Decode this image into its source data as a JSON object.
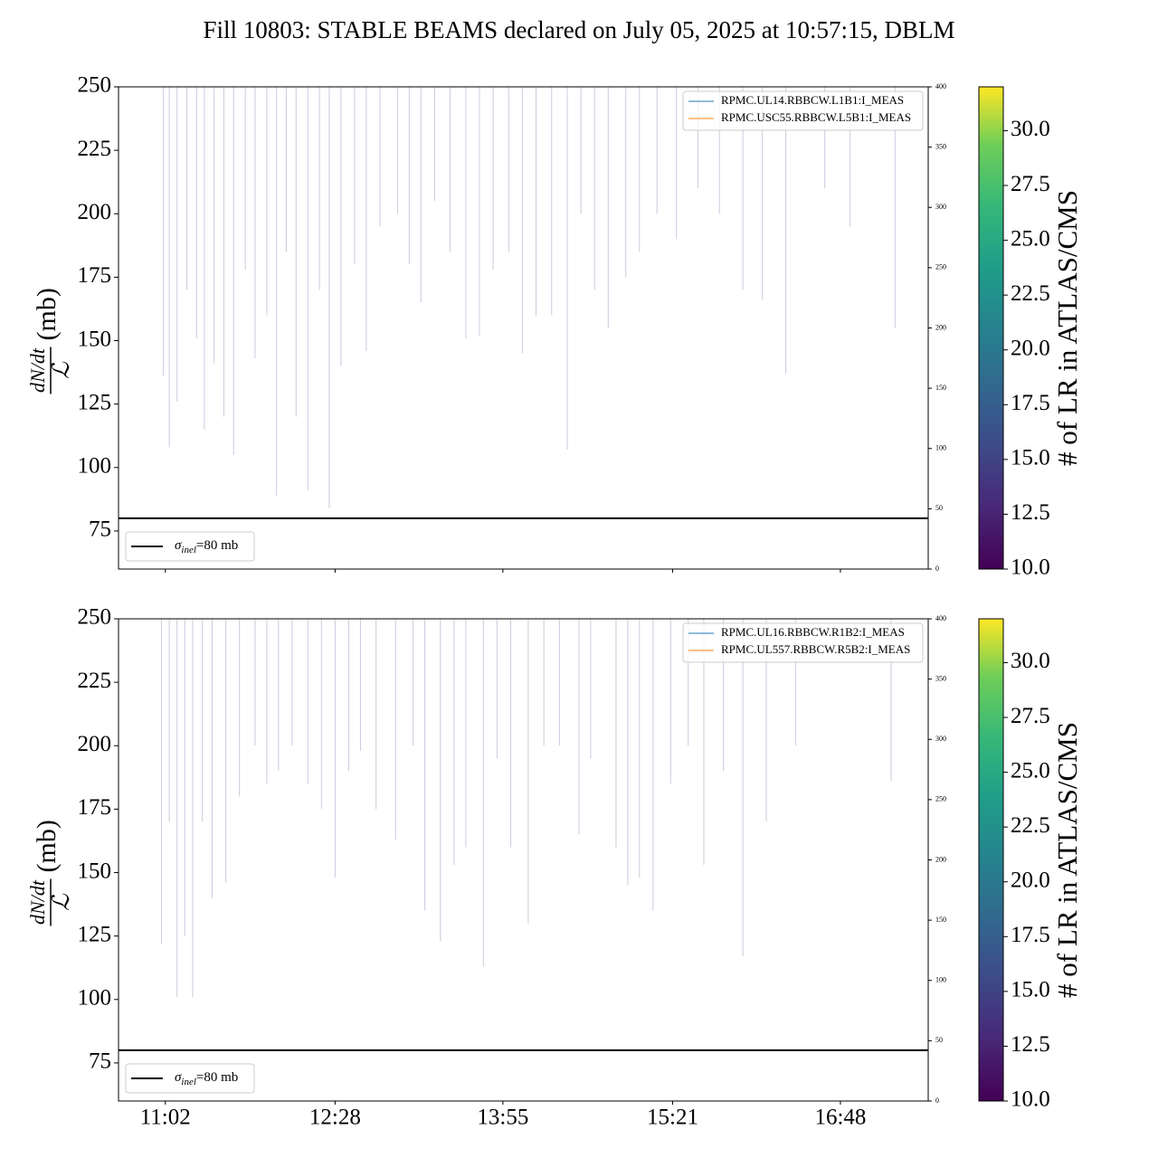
{
  "title": "Fill 10803: STABLE BEAMS declared on July 05, 2025 at 10:57:15, DBLM",
  "chart_data": [
    {
      "type": "spike",
      "ylabel": {
        "numerator": "dN/dt",
        "denominator": "ℒ",
        "unit": "(mb)"
      },
      "xlim": [
        638,
        1053
      ],
      "xticks": [
        662,
        749,
        835,
        922,
        1008
      ],
      "ylim": [
        60,
        250
      ],
      "yticks": [
        75,
        100,
        125,
        150,
        175,
        200,
        225,
        250
      ],
      "y2lim": [
        0,
        400
      ],
      "y2ticks": [
        0,
        50,
        100,
        150,
        200,
        250,
        300,
        350,
        400
      ],
      "color": "#7b5fa0",
      "x": [
        661,
        664,
        668,
        673,
        678,
        682,
        687,
        692,
        697,
        703,
        708,
        714,
        719,
        724,
        729,
        735,
        741,
        746,
        752,
        759,
        765,
        772,
        781,
        787,
        793,
        800,
        808,
        816,
        823,
        830,
        838,
        845,
        852,
        860,
        868,
        875,
        882,
        889,
        898,
        905,
        914,
        924,
        935,
        946,
        958,
        968,
        980,
        1000,
        1013,
        1036
      ],
      "values": [
        136,
        108,
        126,
        170,
        151,
        115,
        141,
        120,
        105,
        178,
        143,
        160,
        89,
        185,
        120,
        91,
        170,
        84,
        140,
        180,
        146,
        195,
        200,
        180,
        165,
        205,
        185,
        151,
        152,
        178,
        185,
        145,
        160,
        160,
        107,
        200,
        170,
        155,
        175,
        185,
        200,
        190,
        210,
        200,
        170,
        166,
        137,
        210,
        195,
        155
      ],
      "series": [
        {
          "name": "RPMC.UL14.RBBCW.L1B1:I_MEAS",
          "color": "#1f77b4",
          "axis": "y2",
          "x": [
            648,
            1040
          ],
          "values": [
            0,
            0
          ]
        },
        {
          "name": "RPMC.USC55.RBBCW.L5B1:I_MEAS",
          "color": "#ff7f0e",
          "axis": "y2",
          "x": [
            648,
            1040
          ],
          "values": [
            0,
            0
          ]
        }
      ],
      "hline": {
        "value": 80,
        "color": "#000000",
        "symbol": "σ",
        "subscript": "inel",
        "text": "=80 mb"
      },
      "colorbar": {
        "label": "# of LR in ATLAS/CMS",
        "lim": [
          10,
          32
        ],
        "ticks": [
          {
            "value": 10,
            "label": "10.0"
          },
          {
            "value": 12.5,
            "label": "12.5"
          },
          {
            "value": 15,
            "label": "15.0"
          },
          {
            "value": 17.5,
            "label": "17.5"
          },
          {
            "value": 20,
            "label": "20.0"
          },
          {
            "value": 22.5,
            "label": "22.5"
          },
          {
            "value": 25,
            "label": "25.0"
          },
          {
            "value": 27.5,
            "label": "27.5"
          },
          {
            "value": 30,
            "label": "30.0"
          }
        ]
      }
    },
    {
      "type": "spike",
      "ylabel": {
        "numerator": "dN/dt",
        "denominator": "ℒ",
        "unit": "(mb)"
      },
      "xlim": [
        638,
        1053
      ],
      "xticks": [
        {
          "value": 662,
          "label": "11:02"
        },
        {
          "value": 749,
          "label": "12:28"
        },
        {
          "value": 835,
          "label": "13:55"
        },
        {
          "value": 922,
          "label": "15:21"
        },
        {
          "value": 1008,
          "label": "16:48"
        }
      ],
      "ylim": [
        60,
        250
      ],
      "yticks": [
        75,
        100,
        125,
        150,
        175,
        200,
        225,
        250
      ],
      "y2lim": [
        0,
        400
      ],
      "y2ticks": [
        0,
        50,
        100,
        150,
        200,
        250,
        300,
        350,
        400
      ],
      "color": "#7b5fa0",
      "x": [
        660,
        664,
        668,
        672,
        676,
        681,
        686,
        693,
        700,
        708,
        714,
        720,
        727,
        735,
        742,
        749,
        756,
        762,
        770,
        780,
        789,
        795,
        803,
        810,
        816,
        825,
        832,
        839,
        848,
        856,
        864,
        874,
        880,
        893,
        899,
        905,
        912,
        921,
        930,
        938,
        948,
        958,
        970,
        985,
        1034
      ],
      "values": [
        122,
        170,
        101,
        125,
        101,
        170,
        140,
        146,
        180,
        200,
        185,
        190,
        200,
        185,
        175,
        148,
        190,
        198,
        175,
        163,
        200,
        135,
        123,
        153,
        160,
        113,
        195,
        160,
        130,
        200,
        200,
        165,
        195,
        160,
        145,
        148,
        135,
        185,
        200,
        153,
        190,
        117,
        170,
        200,
        186
      ],
      "series": [
        {
          "name": "RPMC.UL16.RBBCW.R1B2:I_MEAS",
          "color": "#1f77b4",
          "axis": "y2",
          "x": [
            648,
            1040
          ],
          "values": [
            0,
            0
          ]
        },
        {
          "name": "RPMC.UL557.RBBCW.R5B2:I_MEAS",
          "color": "#ff7f0e",
          "axis": "y2",
          "x": [
            648,
            1040
          ],
          "values": [
            0,
            0
          ]
        }
      ],
      "hline": {
        "value": 80,
        "color": "#000000",
        "symbol": "σ",
        "subscript": "inel",
        "text": "=80 mb"
      },
      "colorbar": {
        "label": "# of LR in ATLAS/CMS",
        "lim": [
          10,
          32
        ],
        "ticks": [
          {
            "value": 10,
            "label": "10.0"
          },
          {
            "value": 12.5,
            "label": "12.5"
          },
          {
            "value": 15,
            "label": "15.0"
          },
          {
            "value": 17.5,
            "label": "17.5"
          },
          {
            "value": 20,
            "label": "20.0"
          },
          {
            "value": 22.5,
            "label": "22.5"
          },
          {
            "value": 25,
            "label": "25.0"
          },
          {
            "value": 27.5,
            "label": "27.5"
          },
          {
            "value": 30,
            "label": "30.0"
          }
        ]
      }
    }
  ]
}
